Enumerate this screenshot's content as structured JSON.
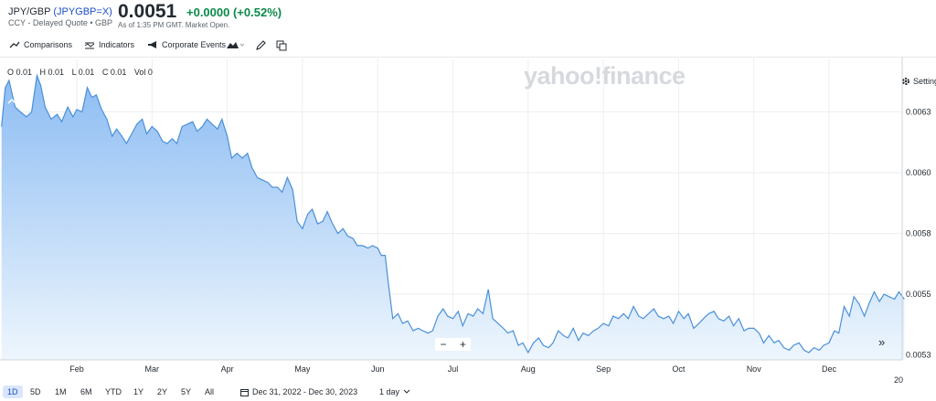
{
  "header": {
    "symbol": "JPY/GBP",
    "ticker": "(JPYGBP=X)",
    "subtitle": "CCY - Delayed Quote • GBP",
    "price": "0.0051",
    "change": "+0.0000 (+0.52%)",
    "as_of": "As of 1:35 PM GMT. Market Open."
  },
  "toolbar": {
    "comparisons": "Comparisons",
    "indicators": "Indicators",
    "corporate_events": "Corporate Events",
    "settings": "Settings"
  },
  "ohlc": {
    "open": "O 0.01",
    "high": "H 0.01",
    "low": "L 0.01",
    "close": "C 0.01",
    "vol": "Vol 0"
  },
  "watermark": "yahoo!finance",
  "zoom": {
    "minus": "−",
    "plus": "+"
  },
  "scroll_label": "»",
  "range_buttons": [
    "1D",
    "5D",
    "1M",
    "6M",
    "YTD",
    "1Y",
    "2Y",
    "5Y",
    "All"
  ],
  "date_range": "Dec 31, 2022 - Dec 30, 2023",
  "interval": "1 day",
  "colors": {
    "line": "#4a90d9",
    "accent": "#1a4ec4",
    "positive": "#0b8a4a"
  },
  "chart_data": {
    "type": "area",
    "x_ticks": [
      {
        "label": "Feb",
        "m": 1.0
      },
      {
        "label": "Mar",
        "m": 2.0
      },
      {
        "label": "Apr",
        "m": 3.0
      },
      {
        "label": "May",
        "m": 4.0
      },
      {
        "label": "Jun",
        "m": 5.0
      },
      {
        "label": "Jul",
        "m": 6.0
      },
      {
        "label": "Aug",
        "m": 7.0
      },
      {
        "label": "Sep",
        "m": 8.0
      },
      {
        "label": "Oct",
        "m": 9.0
      },
      {
        "label": "Nov",
        "m": 10.0
      },
      {
        "label": "Dec",
        "m": 11.0
      }
    ],
    "extra_x_label": "20",
    "y_ticks": [
      "0.0063",
      "0.0060",
      "0.0058",
      "0.0055",
      "0.0053"
    ],
    "y_tick_values": [
      0.0063,
      0.00605,
      0.0058,
      0.00555,
      0.0053
    ],
    "ylim": [
      0.00528,
      0.00652
    ],
    "xlim": [
      0.0,
      12.0
    ],
    "points": [
      [
        0.0,
        0.00624
      ],
      [
        0.05,
        0.0064
      ],
      [
        0.1,
        0.00643
      ],
      [
        0.18,
        0.00632
      ],
      [
        0.25,
        0.0063
      ],
      [
        0.33,
        0.00628
      ],
      [
        0.4,
        0.0063
      ],
      [
        0.47,
        0.00645
      ],
      [
        0.52,
        0.00641
      ],
      [
        0.58,
        0.00632
      ],
      [
        0.66,
        0.00627
      ],
      [
        0.74,
        0.00629
      ],
      [
        0.8,
        0.00626
      ],
      [
        0.88,
        0.00632
      ],
      [
        0.95,
        0.00628
      ],
      [
        1.0,
        0.00631
      ],
      [
        1.07,
        0.0063
      ],
      [
        1.14,
        0.0064
      ],
      [
        1.2,
        0.00636
      ],
      [
        1.26,
        0.00637
      ],
      [
        1.33,
        0.00631
      ],
      [
        1.4,
        0.00627
      ],
      [
        1.47,
        0.0062
      ],
      [
        1.53,
        0.00623
      ],
      [
        1.6,
        0.0062
      ],
      [
        1.66,
        0.00617
      ],
      [
        1.73,
        0.00621
      ],
      [
        1.8,
        0.00625
      ],
      [
        1.87,
        0.00627
      ],
      [
        1.93,
        0.00621
      ],
      [
        2.0,
        0.00624
      ],
      [
        2.07,
        0.00622
      ],
      [
        2.14,
        0.00618
      ],
      [
        2.2,
        0.00617
      ],
      [
        2.27,
        0.00619
      ],
      [
        2.33,
        0.00617
      ],
      [
        2.4,
        0.00624
      ],
      [
        2.47,
        0.00625
      ],
      [
        2.54,
        0.00626
      ],
      [
        2.6,
        0.00622
      ],
      [
        2.67,
        0.00624
      ],
      [
        2.73,
        0.00627
      ],
      [
        2.8,
        0.00625
      ],
      [
        2.87,
        0.00623
      ],
      [
        2.93,
        0.00627
      ],
      [
        3.0,
        0.0062
      ],
      [
        3.06,
        0.00611
      ],
      [
        3.13,
        0.00613
      ],
      [
        3.2,
        0.00611
      ],
      [
        3.27,
        0.00613
      ],
      [
        3.33,
        0.00607
      ],
      [
        3.4,
        0.00603
      ],
      [
        3.47,
        0.00602
      ],
      [
        3.54,
        0.00601
      ],
      [
        3.6,
        0.00599
      ],
      [
        3.67,
        0.00599
      ],
      [
        3.73,
        0.00597
      ],
      [
        3.8,
        0.00603
      ],
      [
        3.87,
        0.00598
      ],
      [
        3.93,
        0.00585
      ],
      [
        4.0,
        0.00582
      ],
      [
        4.07,
        0.00588
      ],
      [
        4.13,
        0.0059
      ],
      [
        4.2,
        0.00584
      ],
      [
        4.27,
        0.00585
      ],
      [
        4.33,
        0.00589
      ],
      [
        4.4,
        0.00584
      ],
      [
        4.47,
        0.0058
      ],
      [
        4.54,
        0.00582
      ],
      [
        4.6,
        0.00579
      ],
      [
        4.67,
        0.00578
      ],
      [
        4.73,
        0.00575
      ],
      [
        4.8,
        0.00575
      ],
      [
        4.87,
        0.00574
      ],
      [
        4.93,
        0.00575
      ],
      [
        5.0,
        0.00574
      ],
      [
        5.05,
        0.00571
      ],
      [
        5.1,
        0.00571
      ],
      [
        5.14,
        0.0056
      ],
      [
        5.2,
        0.00545
      ],
      [
        5.27,
        0.00547
      ],
      [
        5.33,
        0.00543
      ],
      [
        5.4,
        0.00544
      ],
      [
        5.47,
        0.0054
      ],
      [
        5.54,
        0.00541
      ],
      [
        5.6,
        0.0054
      ],
      [
        5.67,
        0.00539
      ],
      [
        5.73,
        0.0054
      ],
      [
        5.8,
        0.00546
      ],
      [
        5.87,
        0.00549
      ],
      [
        5.93,
        0.00546
      ],
      [
        6.0,
        0.00545
      ],
      [
        6.07,
        0.00548
      ],
      [
        6.13,
        0.00542
      ],
      [
        6.2,
        0.00547
      ],
      [
        6.27,
        0.00546
      ],
      [
        6.33,
        0.00549
      ],
      [
        6.4,
        0.00547
      ],
      [
        6.47,
        0.00557
      ],
      [
        6.53,
        0.00545
      ],
      [
        6.6,
        0.00543
      ],
      [
        6.67,
        0.00541
      ],
      [
        6.73,
        0.00539
      ],
      [
        6.8,
        0.0054
      ],
      [
        6.87,
        0.00534
      ],
      [
        6.93,
        0.00535
      ],
      [
        7.0,
        0.00531
      ],
      [
        7.07,
        0.00535
      ],
      [
        7.14,
        0.00537
      ],
      [
        7.2,
        0.00534
      ],
      [
        7.27,
        0.00533
      ],
      [
        7.33,
        0.00535
      ],
      [
        7.4,
        0.0054
      ],
      [
        7.47,
        0.00538
      ],
      [
        7.53,
        0.00537
      ],
      [
        7.6,
        0.00541
      ],
      [
        7.67,
        0.00536
      ],
      [
        7.73,
        0.00539
      ],
      [
        7.8,
        0.00538
      ],
      [
        7.87,
        0.0054
      ],
      [
        7.93,
        0.00541
      ],
      [
        8.0,
        0.00543
      ],
      [
        8.07,
        0.00542
      ],
      [
        8.13,
        0.00546
      ],
      [
        8.2,
        0.00545
      ],
      [
        8.27,
        0.00547
      ],
      [
        8.33,
        0.00545
      ],
      [
        8.4,
        0.0055
      ],
      [
        8.47,
        0.00546
      ],
      [
        8.53,
        0.00545
      ],
      [
        8.6,
        0.00547
      ],
      [
        8.67,
        0.00549
      ],
      [
        8.73,
        0.00546
      ],
      [
        8.8,
        0.00545
      ],
      [
        8.87,
        0.00546
      ],
      [
        8.93,
        0.00543
      ],
      [
        9.0,
        0.00548
      ],
      [
        9.07,
        0.00545
      ],
      [
        9.13,
        0.00547
      ],
      [
        9.2,
        0.00541
      ],
      [
        9.27,
        0.00543
      ],
      [
        9.33,
        0.00545
      ],
      [
        9.4,
        0.00547
      ],
      [
        9.47,
        0.00548
      ],
      [
        9.53,
        0.00545
      ],
      [
        9.6,
        0.00544
      ],
      [
        9.67,
        0.00546
      ],
      [
        9.73,
        0.00542
      ],
      [
        9.8,
        0.00545
      ],
      [
        9.87,
        0.0054
      ],
      [
        9.93,
        0.00541
      ],
      [
        10.0,
        0.00541
      ],
      [
        10.07,
        0.00539
      ],
      [
        10.13,
        0.00535
      ],
      [
        10.2,
        0.00538
      ],
      [
        10.27,
        0.00535
      ],
      [
        10.33,
        0.00536
      ],
      [
        10.4,
        0.00533
      ],
      [
        10.47,
        0.00532
      ],
      [
        10.53,
        0.00534
      ],
      [
        10.6,
        0.00535
      ],
      [
        10.67,
        0.00532
      ],
      [
        10.73,
        0.00531
      ],
      [
        10.8,
        0.00533
      ],
      [
        10.87,
        0.00532
      ],
      [
        10.93,
        0.00534
      ],
      [
        11.0,
        0.00535
      ],
      [
        11.07,
        0.0054
      ],
      [
        11.13,
        0.00539
      ],
      [
        11.2,
        0.0055
      ],
      [
        11.27,
        0.00546
      ],
      [
        11.33,
        0.00554
      ],
      [
        11.4,
        0.00551
      ],
      [
        11.47,
        0.00546
      ],
      [
        11.53,
        0.00551
      ],
      [
        11.6,
        0.00556
      ],
      [
        11.67,
        0.00552
      ],
      [
        11.73,
        0.00555
      ],
      [
        11.8,
        0.00554
      ],
      [
        11.87,
        0.00553
      ],
      [
        11.93,
        0.00556
      ],
      [
        12.0,
        0.00553
      ]
    ]
  }
}
